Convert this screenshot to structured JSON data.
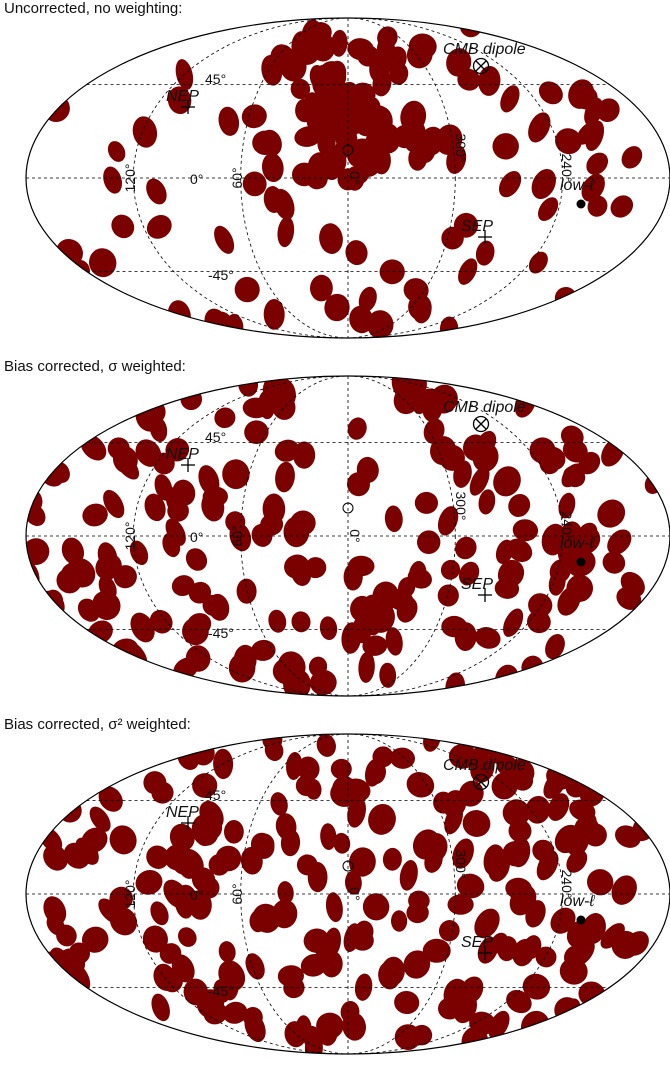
{
  "panels": [
    {
      "title": "Uncorrected, no weighting:"
    },
    {
      "title": "Bias corrected, σ weighted:"
    },
    {
      "title": "Bias corrected, σ² weighted:"
    }
  ],
  "map_labels": {
    "lat_45": "45°",
    "lat_0": "0°",
    "lat_m45": "-45°",
    "lon_120": "120°",
    "lon_60": "60°",
    "lon_0": "0°",
    "lon_300": "300°",
    "lon_240": "240°",
    "cmb_dipole": "CMB dipole",
    "nep": "NEP",
    "sep": "SEP",
    "low_ell": "low-ℓ"
  },
  "colors": {
    "blob": "#7b0000",
    "line": "#000000"
  },
  "icons": {
    "cmb_dipole_marker": "circled-x-icon",
    "pole_marker": "plus-icon",
    "low_ell_marker": "filled-circle-icon"
  }
}
